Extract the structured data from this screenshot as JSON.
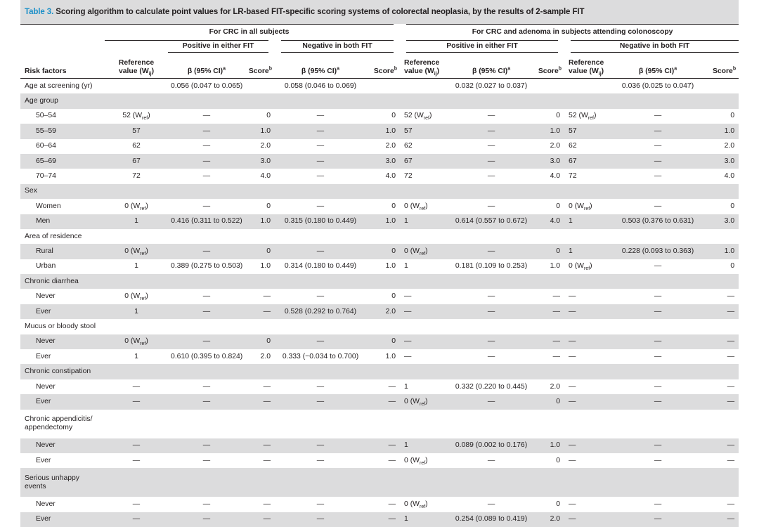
{
  "caption": {
    "label": "Table 3.",
    "text": "Scoring algorithm to calculate point values for LR-based FIT-specific scoring systems of colorectal neoplasia, by the results of 2-sample FIT"
  },
  "header": {
    "group_all": "For CRC in all subjects",
    "group_colo": "For CRC and adenoma in subjects attending colonoscopy",
    "positive": "Positive in either FIT",
    "negative": "Negative in both FIT",
    "risk_factors": "Risk factors",
    "reference_top": "Reference",
    "reference_bottom": "value (W",
    "reference_sub": "ij",
    "beta": "β (95% CI)",
    "beta_sup": "a",
    "score": "Score",
    "score_sup": "b"
  },
  "rows": [
    {
      "kind": "main",
      "label": "Age at screening (yr)",
      "shade": false,
      "cells": [
        "",
        "0.056 (0.047 to 0.065)",
        "",
        "0.058 (0.046 to 0.069)",
        "",
        "",
        "0.032 (0.027 to 0.037)",
        "",
        "",
        "0.036 (0.025 to 0.047)",
        ""
      ]
    },
    {
      "kind": "main",
      "label": "Age group",
      "shade": true,
      "cells": [
        "",
        "",
        "",
        "",
        "",
        "",
        "",
        "",
        "",
        "",
        ""
      ]
    },
    {
      "kind": "sub",
      "label": "50–54",
      "shade": false,
      "cells": [
        "52 (Wref)",
        "—",
        "0",
        "—",
        "0",
        "52 (Wref)",
        "—",
        "0",
        "52 (Wref)",
        "—",
        "0"
      ]
    },
    {
      "kind": "sub",
      "label": "55–59",
      "shade": true,
      "cells": [
        "57",
        "—",
        "1.0",
        "—",
        "1.0",
        "57",
        "—",
        "1.0",
        "57",
        "—",
        "1.0"
      ]
    },
    {
      "kind": "sub",
      "label": "60–64",
      "shade": false,
      "cells": [
        "62",
        "—",
        "2.0",
        "—",
        "2.0",
        "62",
        "—",
        "2.0",
        "62",
        "—",
        "2.0"
      ]
    },
    {
      "kind": "sub",
      "label": "65–69",
      "shade": true,
      "cells": [
        "67",
        "—",
        "3.0",
        "—",
        "3.0",
        "67",
        "—",
        "3.0",
        "67",
        "—",
        "3.0"
      ]
    },
    {
      "kind": "sub",
      "label": "70–74",
      "shade": false,
      "cells": [
        "72",
        "—",
        "4.0",
        "—",
        "4.0",
        "72",
        "—",
        "4.0",
        "72",
        "—",
        "4.0"
      ]
    },
    {
      "kind": "main",
      "label": "Sex",
      "shade": true,
      "cells": [
        "",
        "",
        "",
        "",
        "",
        "",
        "",
        "",
        "",
        "",
        ""
      ]
    },
    {
      "kind": "sub",
      "label": "Women",
      "shade": false,
      "cells": [
        "0 (Wref)",
        "—",
        "0",
        "—",
        "0",
        "0 (Wref)",
        "—",
        "0",
        "0 (Wref)",
        "—",
        "0"
      ]
    },
    {
      "kind": "sub",
      "label": "Men",
      "shade": true,
      "cells": [
        "1",
        "0.416 (0.311 to 0.522)",
        "1.0",
        "0.315 (0.180 to 0.449)",
        "1.0",
        "1",
        "0.614 (0.557 to 0.672)",
        "4.0",
        "1",
        "0.503 (0.376 to 0.631)",
        "3.0"
      ]
    },
    {
      "kind": "main",
      "label": "Area of residence",
      "shade": false,
      "cells": [
        "",
        "",
        "",
        "",
        "",
        "",
        "",
        "",
        "",
        "",
        ""
      ]
    },
    {
      "kind": "sub",
      "label": "Rural",
      "shade": true,
      "cells": [
        "0 (Wref)",
        "—",
        "0",
        "—",
        "0",
        "0 (Wref)",
        "—",
        "0",
        "1",
        "0.228 (0.093 to 0.363)",
        "1.0"
      ]
    },
    {
      "kind": "sub",
      "label": "Urban",
      "shade": false,
      "cells": [
        "1",
        "0.389 (0.275 to 0.503)",
        "1.0",
        "0.314 (0.180 to 0.449)",
        "1.0",
        "1",
        "0.181 (0.109 to 0.253)",
        "1.0",
        "0 (Wref)",
        "—",
        "0"
      ]
    },
    {
      "kind": "main",
      "label": "Chronic diarrhea",
      "shade": true,
      "cells": [
        "",
        "",
        "",
        "",
        "",
        "",
        "",
        "",
        "",
        "",
        ""
      ]
    },
    {
      "kind": "sub",
      "label": "Never",
      "shade": false,
      "cells": [
        "0 (Wref)",
        "—",
        "—",
        "—",
        "0",
        "—",
        "—",
        "—",
        "—",
        "—",
        "—"
      ]
    },
    {
      "kind": "sub",
      "label": "Ever",
      "shade": true,
      "cells": [
        "1",
        "—",
        "—",
        "0.528 (0.292 to 0.764)",
        "2.0",
        "—",
        "—",
        "—",
        "—",
        "—",
        "—"
      ]
    },
    {
      "kind": "main",
      "label": "Mucus or bloody stool",
      "shade": false,
      "cells": [
        "",
        "",
        "",
        "",
        "",
        "",
        "",
        "",
        "",
        "",
        ""
      ]
    },
    {
      "kind": "sub",
      "label": "Never",
      "shade": true,
      "cells": [
        "0 (Wref)",
        "—",
        "0",
        "—",
        "0",
        "—",
        "—",
        "—",
        "—",
        "—",
        "—"
      ]
    },
    {
      "kind": "sub",
      "label": "Ever",
      "shade": false,
      "cells": [
        "1",
        "0.610 (0.395 to 0.824)",
        "2.0",
        "0.333 (−0.034 to 0.700)",
        "1.0",
        "—",
        "—",
        "—",
        "—",
        "—",
        "—"
      ]
    },
    {
      "kind": "main",
      "label": "Chronic constipation",
      "shade": true,
      "cells": [
        "",
        "",
        "",
        "",
        "",
        "",
        "",
        "",
        "",
        "",
        ""
      ]
    },
    {
      "kind": "sub",
      "label": "Never",
      "shade": false,
      "cells": [
        "—",
        "—",
        "—",
        "—",
        "—",
        "1",
        "0.332 (0.220 to 0.445)",
        "2.0",
        "—",
        "—",
        "—"
      ]
    },
    {
      "kind": "sub",
      "label": "Ever",
      "shade": true,
      "cells": [
        "—",
        "—",
        "—",
        "—",
        "—",
        "0 (Wref)",
        "—",
        "0",
        "—",
        "—",
        "—"
      ]
    },
    {
      "kind": "main2",
      "label": "Chronic appendicitis/ appendectomy",
      "shade": false,
      "cells": [
        "",
        "",
        "",
        "",
        "",
        "",
        "",
        "",
        "",
        "",
        ""
      ]
    },
    {
      "kind": "sub",
      "label": "Never",
      "shade": true,
      "cells": [
        "—",
        "—",
        "—",
        "—",
        "—",
        "1",
        "0.089 (0.002 to 0.176)",
        "1.0",
        "—",
        "—",
        "—"
      ]
    },
    {
      "kind": "sub",
      "label": "Ever",
      "shade": false,
      "cells": [
        "—",
        "—",
        "—",
        "—",
        "—",
        "0 (Wref)",
        "—",
        "0",
        "—",
        "—",
        "—"
      ]
    },
    {
      "kind": "main2",
      "label": "Serious unhappy events",
      "shade": true,
      "cells": [
        "",
        "",
        "",
        "",
        "",
        "",
        "",
        "",
        "",
        "",
        ""
      ]
    },
    {
      "kind": "sub",
      "label": "Never",
      "shade": false,
      "cells": [
        "—",
        "—",
        "—",
        "—",
        "—",
        "0 (Wref)",
        "—",
        "0",
        "—",
        "—",
        "—"
      ]
    },
    {
      "kind": "sub",
      "label": "Ever",
      "shade": true,
      "cells": [
        "—",
        "—",
        "—",
        "—",
        "—",
        "1",
        "0.254 (0.089 to 0.419)",
        "2.0",
        "—",
        "—",
        "—"
      ]
    }
  ]
}
